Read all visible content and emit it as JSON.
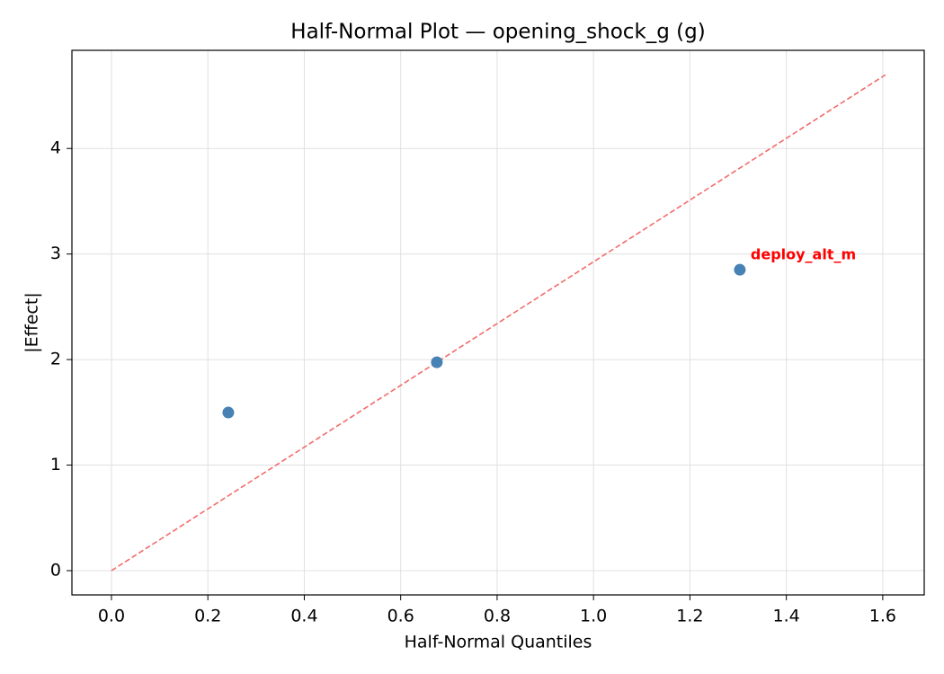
{
  "chart_data": {
    "type": "scatter",
    "title": "Half-Normal Plot — opening_shock_g (g)",
    "x_label": "Half-Normal Quantiles",
    "y_label": "|Effect|",
    "x": [
      0.2424,
      0.675,
      1.3035
    ],
    "values": [
      1.498,
      1.974,
      2.851
    ],
    "color": "#4682b4",
    "point_labels": [
      null,
      null,
      "deploy_alt_m"
    ],
    "point_label_color": "#ff0000",
    "reference_line": {
      "x": [
        0,
        1.6056
      ],
      "y": [
        0,
        4.698
      ],
      "color": "#f26b6b",
      "dashed": true
    },
    "xlim": [
      -0.082,
      1.686
    ],
    "ylim": [
      -0.23,
      4.93
    ],
    "xticks": [
      {
        "value": 0,
        "label": "0.0"
      },
      0.2,
      0.4,
      0.6,
      0.8,
      {
        "value": 1,
        "label": "1.0"
      },
      1.2,
      1.4,
      1.6
    ],
    "yticks": [
      0,
      1,
      2,
      3,
      4
    ],
    "grid": true
  }
}
